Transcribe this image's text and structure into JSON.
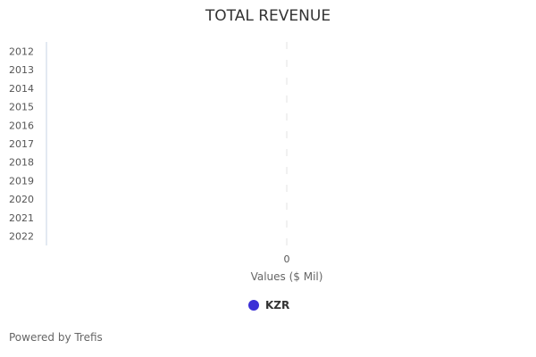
{
  "chart_data": {
    "type": "bar",
    "orientation": "horizontal",
    "title": "TOTAL REVENUE",
    "xlabel": "Values ($ Mil)",
    "ylabel": "",
    "categories": [
      "2012",
      "2013",
      "2014",
      "2015",
      "2016",
      "2017",
      "2018",
      "2019",
      "2020",
      "2021",
      "2022"
    ],
    "series": [
      {
        "name": "KZR",
        "values": [
          0,
          0,
          0,
          0,
          0,
          0,
          0,
          0,
          0,
          0,
          0
        ],
        "color": "#3b30d6"
      }
    ],
    "x_ticks": [
      "0"
    ],
    "grid": true,
    "legend_position": "bottom"
  },
  "footer": {
    "powered_by": "Powered by Trefis"
  }
}
